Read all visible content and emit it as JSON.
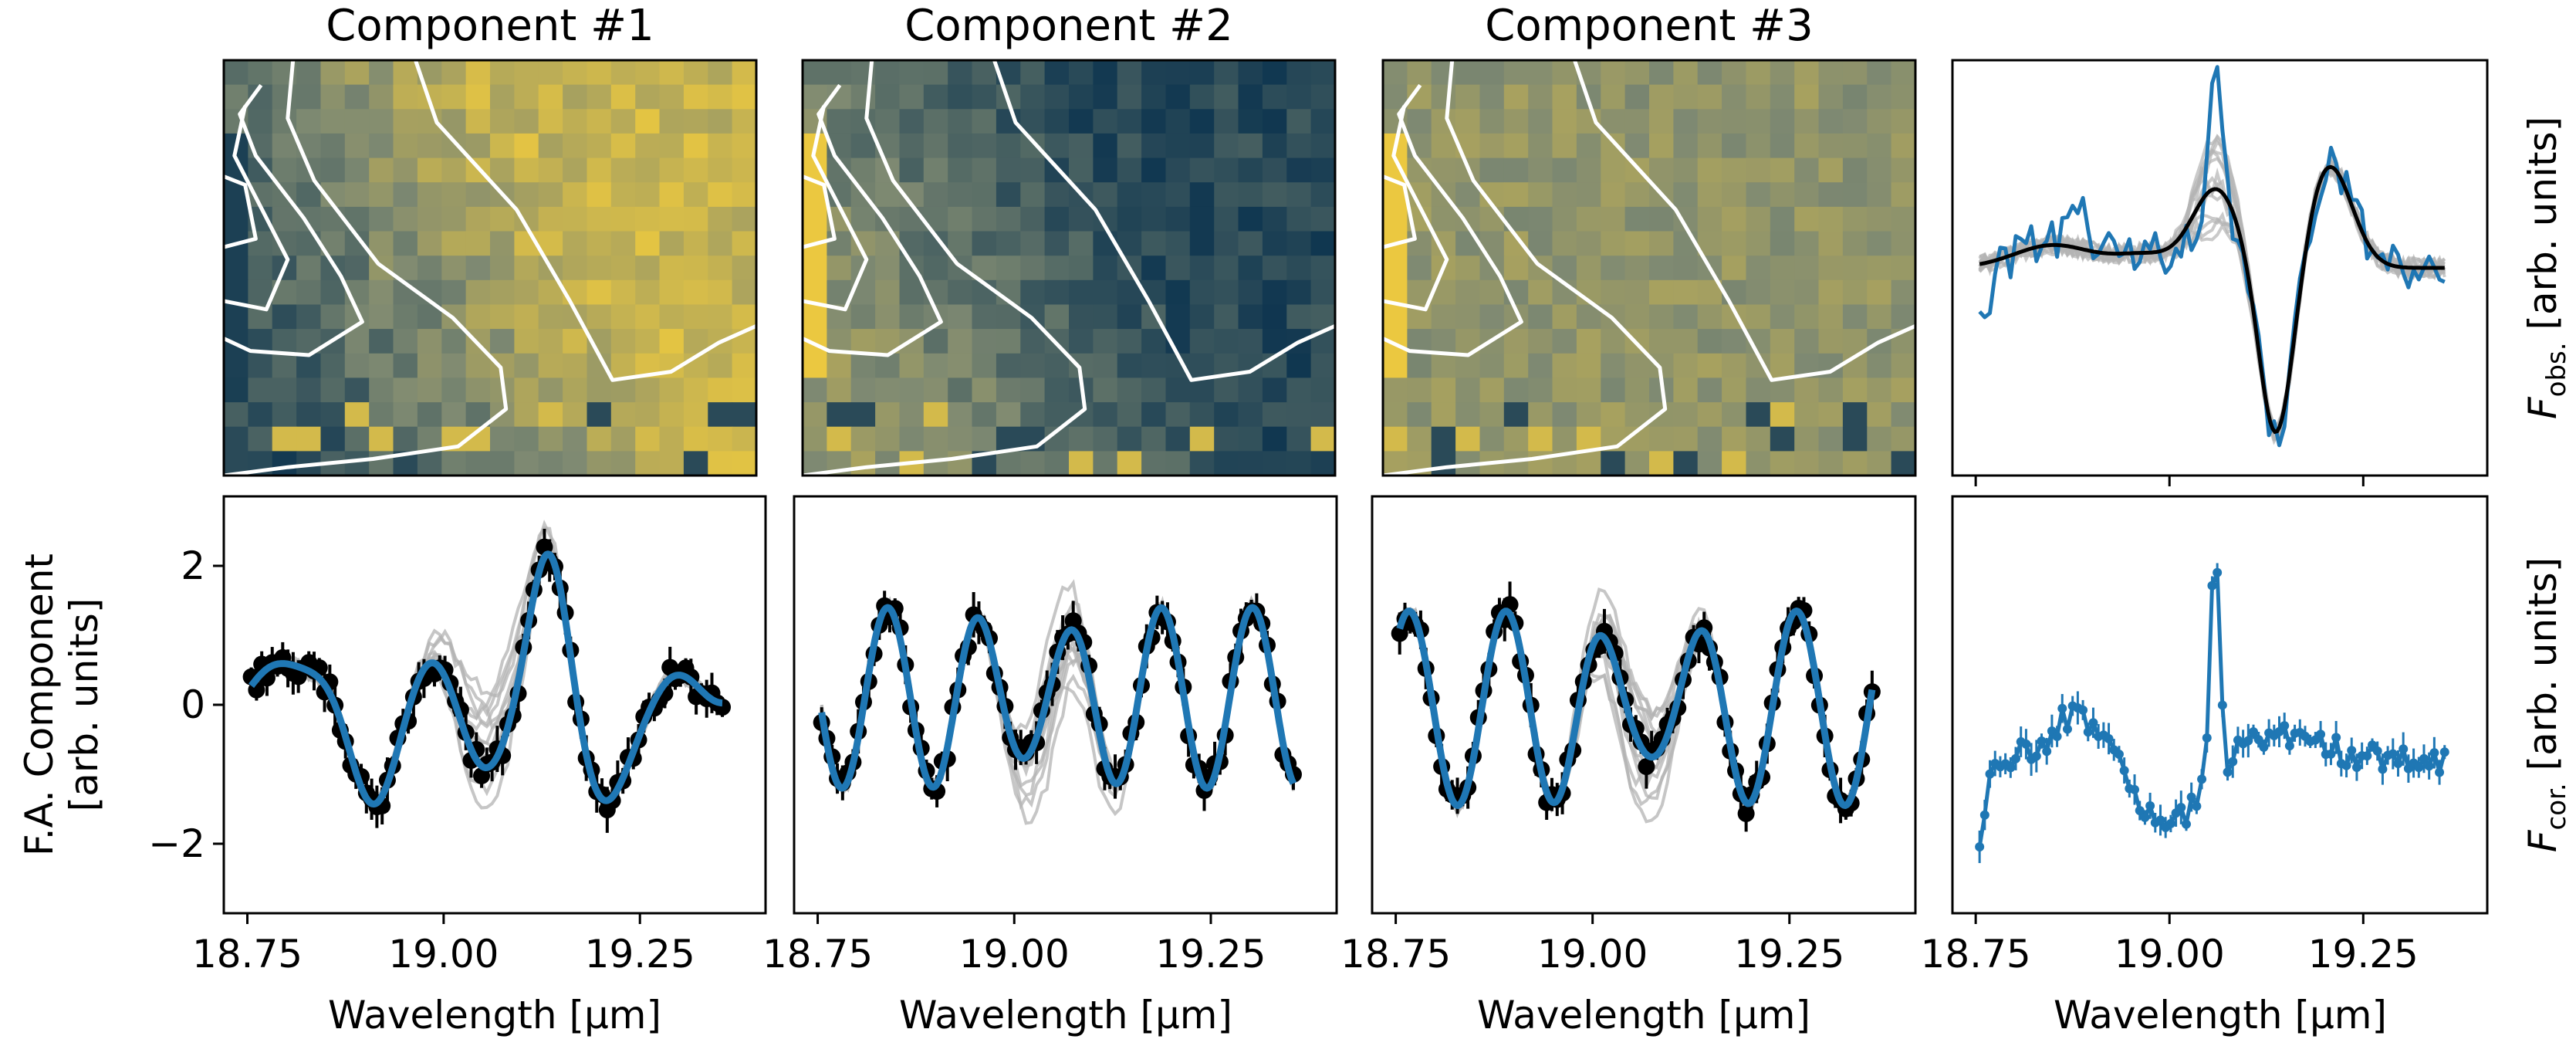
{
  "colors": {
    "fit": "#1f77b4",
    "data": "#000000",
    "ensemble": "#b3b3b3",
    "contour": "#ffffff",
    "map_low": "#0f3650",
    "map_mid": "#7f8a72",
    "map_high": "#f7cf3a"
  },
  "chart_data": [
    {
      "type": "heatmap",
      "panel": "map1",
      "title": "Component #1",
      "description": "spatial map of component #1 amplitude with white contours",
      "pattern": "bright-right",
      "colormap": "cividis"
    },
    {
      "type": "heatmap",
      "panel": "map2",
      "title": "Component #2",
      "description": "spatial map of component #2 amplitude with white contours",
      "pattern": "dark-right",
      "colormap": "cividis"
    },
    {
      "type": "heatmap",
      "panel": "map3",
      "title": "Component #3",
      "description": "spatial map of component #3 amplitude with white contours",
      "pattern": "flat",
      "colormap": "cividis"
    },
    {
      "type": "line",
      "panel": "obs",
      "ylabel_main": "F",
      "ylabel_sub": "obs.",
      "ylabel_rest": " [arb. units]",
      "xlim": [
        18.72,
        19.41
      ],
      "ylim": [
        -3.2,
        3.2
      ],
      "xticks": [
        18.75,
        19.0,
        19.25
      ],
      "series": [
        {
          "name": "observed spectrum",
          "color": "#1f77b4"
        },
        {
          "name": "model ensemble",
          "color": "#b3b3b3"
        },
        {
          "name": "median model",
          "color": "#000000"
        }
      ]
    },
    {
      "type": "line",
      "panel": "comp1",
      "ylabel": [
        "F.A. Component",
        "[arb. units]"
      ],
      "xlabel": "Wavelength [μm]",
      "xlim": [
        18.72,
        19.41
      ],
      "ylim": [
        -3.0,
        3.0
      ],
      "xticks": [
        18.75,
        19.0,
        19.25
      ],
      "xtick_labels": [
        "18.75",
        "19.00",
        "19.25"
      ],
      "yticks": [
        -2,
        0,
        2
      ],
      "ytick_labels": [
        "−2",
        "0",
        "2"
      ],
      "series": [
        {
          "name": "component data",
          "color": "#000000"
        },
        {
          "name": "smooth fit",
          "color": "#1f77b4"
        }
      ]
    },
    {
      "type": "line",
      "panel": "comp2",
      "xlabel": "Wavelength [μm]",
      "xlim": [
        18.72,
        19.41
      ],
      "ylim": [
        -3.0,
        3.0
      ],
      "xticks": [
        18.75,
        19.0,
        19.25
      ],
      "xtick_labels": [
        "18.75",
        "19.00",
        "19.25"
      ],
      "series": [
        {
          "name": "component data",
          "color": "#000000"
        },
        {
          "name": "smooth fit",
          "color": "#1f77b4"
        }
      ]
    },
    {
      "type": "line",
      "panel": "comp3",
      "xlabel": "Wavelength [μm]",
      "xlim": [
        18.72,
        19.41
      ],
      "ylim": [
        -3.0,
        3.0
      ],
      "xticks": [
        18.75,
        19.0,
        19.25
      ],
      "xtick_labels": [
        "18.75",
        "19.00",
        "19.25"
      ],
      "series": [
        {
          "name": "component data",
          "color": "#000000"
        },
        {
          "name": "smooth fit",
          "color": "#1f77b4"
        }
      ]
    },
    {
      "type": "line",
      "panel": "cor",
      "xlabel": "Wavelength [μm]",
      "ylabel_main": "F",
      "ylabel_sub": "cor.",
      "ylabel_rest": " [arb. units]",
      "xlim": [
        18.72,
        19.41
      ],
      "ylim": [
        -3.3,
        3.4
      ],
      "xticks": [
        18.75,
        19.0,
        19.25
      ],
      "xtick_labels": [
        "18.75",
        "19.00",
        "19.25"
      ],
      "series": [
        {
          "name": "corrected spectrum",
          "color": "#1f77b4"
        }
      ]
    }
  ]
}
